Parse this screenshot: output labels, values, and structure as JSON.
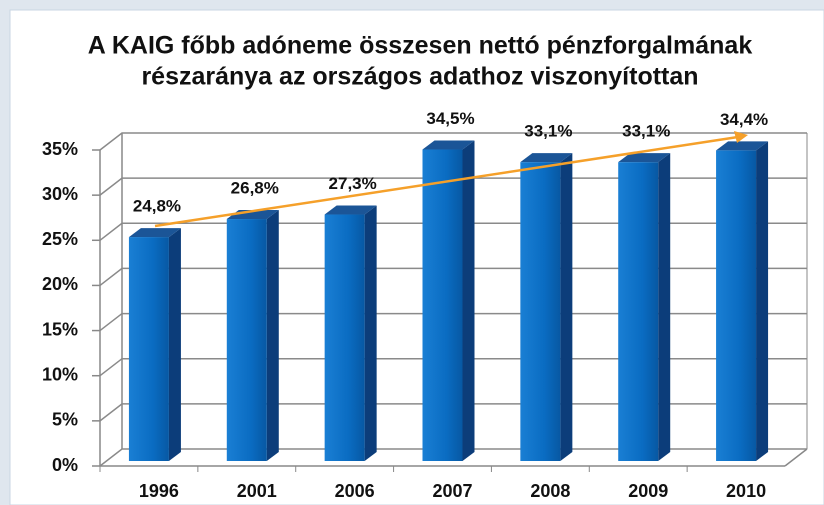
{
  "chart_data": {
    "type": "bar3d",
    "title": [
      "A KAIG főbb adóneme összesen nettó pénzforgalmának",
      "részaránya az országos adathoz viszonyítottan"
    ],
    "categories": [
      "1996",
      "2001",
      "2006",
      "2007",
      "2008",
      "2009",
      "2010"
    ],
    "values": [
      24.8,
      26.8,
      27.3,
      34.5,
      33.1,
      33.1,
      34.4
    ],
    "value_labels": [
      "24,8%",
      "26,8%",
      "27,3%",
      "34,5%",
      "33,1%",
      "33,1%",
      "34,4%"
    ],
    "color": "#0a6cc2",
    "ylim": [
      0,
      35
    ],
    "yticks": [
      {
        "value": 0,
        "label": "0%"
      },
      {
        "value": 5,
        "label": "5%"
      },
      {
        "value": 10,
        "label": "10%"
      },
      {
        "value": 15,
        "label": "15%"
      },
      {
        "value": 20,
        "label": "20%"
      },
      {
        "value": 25,
        "label": "25%"
      },
      {
        "value": 30,
        "label": "30%"
      },
      {
        "value": 35,
        "label": "35%"
      }
    ],
    "grid": true
  }
}
